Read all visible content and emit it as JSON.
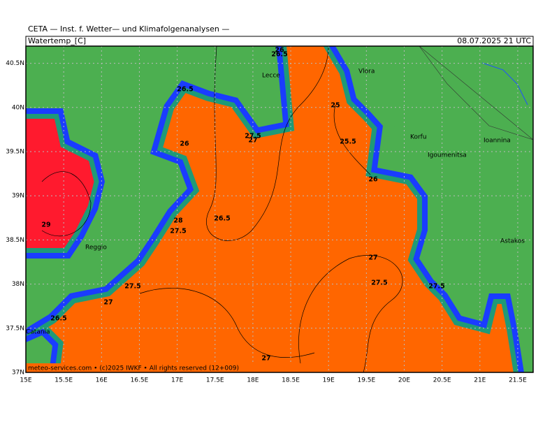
{
  "header": "CETA — Inst. f. Wetter— und Klimafolgenanalysen —",
  "title": "Watertemp_[C]",
  "valid_time": "08.07.2025 21 UTC",
  "footer": "meteo-services.com • (c)2025 IWKF • All rights reserved (12+009)",
  "lon_labels": [
    "15E",
    "15.5E",
    "16E",
    "16.5E",
    "17E",
    "17.5E",
    "18E",
    "18.5E",
    "19E",
    "19.5E",
    "20E",
    "20.5E",
    "21E",
    "21.5E"
  ],
  "lat_labels": [
    "37N",
    "37.5N",
    "38N",
    "38.5N",
    "39N",
    "39.5N",
    "40N",
    "40.5N"
  ],
  "contour_labels": [
    26,
    26.5,
    26.5,
    25,
    27.5,
    27,
    25.5,
    26,
    26,
    26.5,
    28,
    27.5,
    29,
    27,
    27.5,
    27.5,
    27,
    26.5,
    27,
    27.5
  ],
  "places": [
    "Vlora",
    "Lecce",
    "Korfu",
    "Igoumenitsa",
    "Ioannina",
    "Astakos",
    "Reggio",
    "Catania"
  ]
}
